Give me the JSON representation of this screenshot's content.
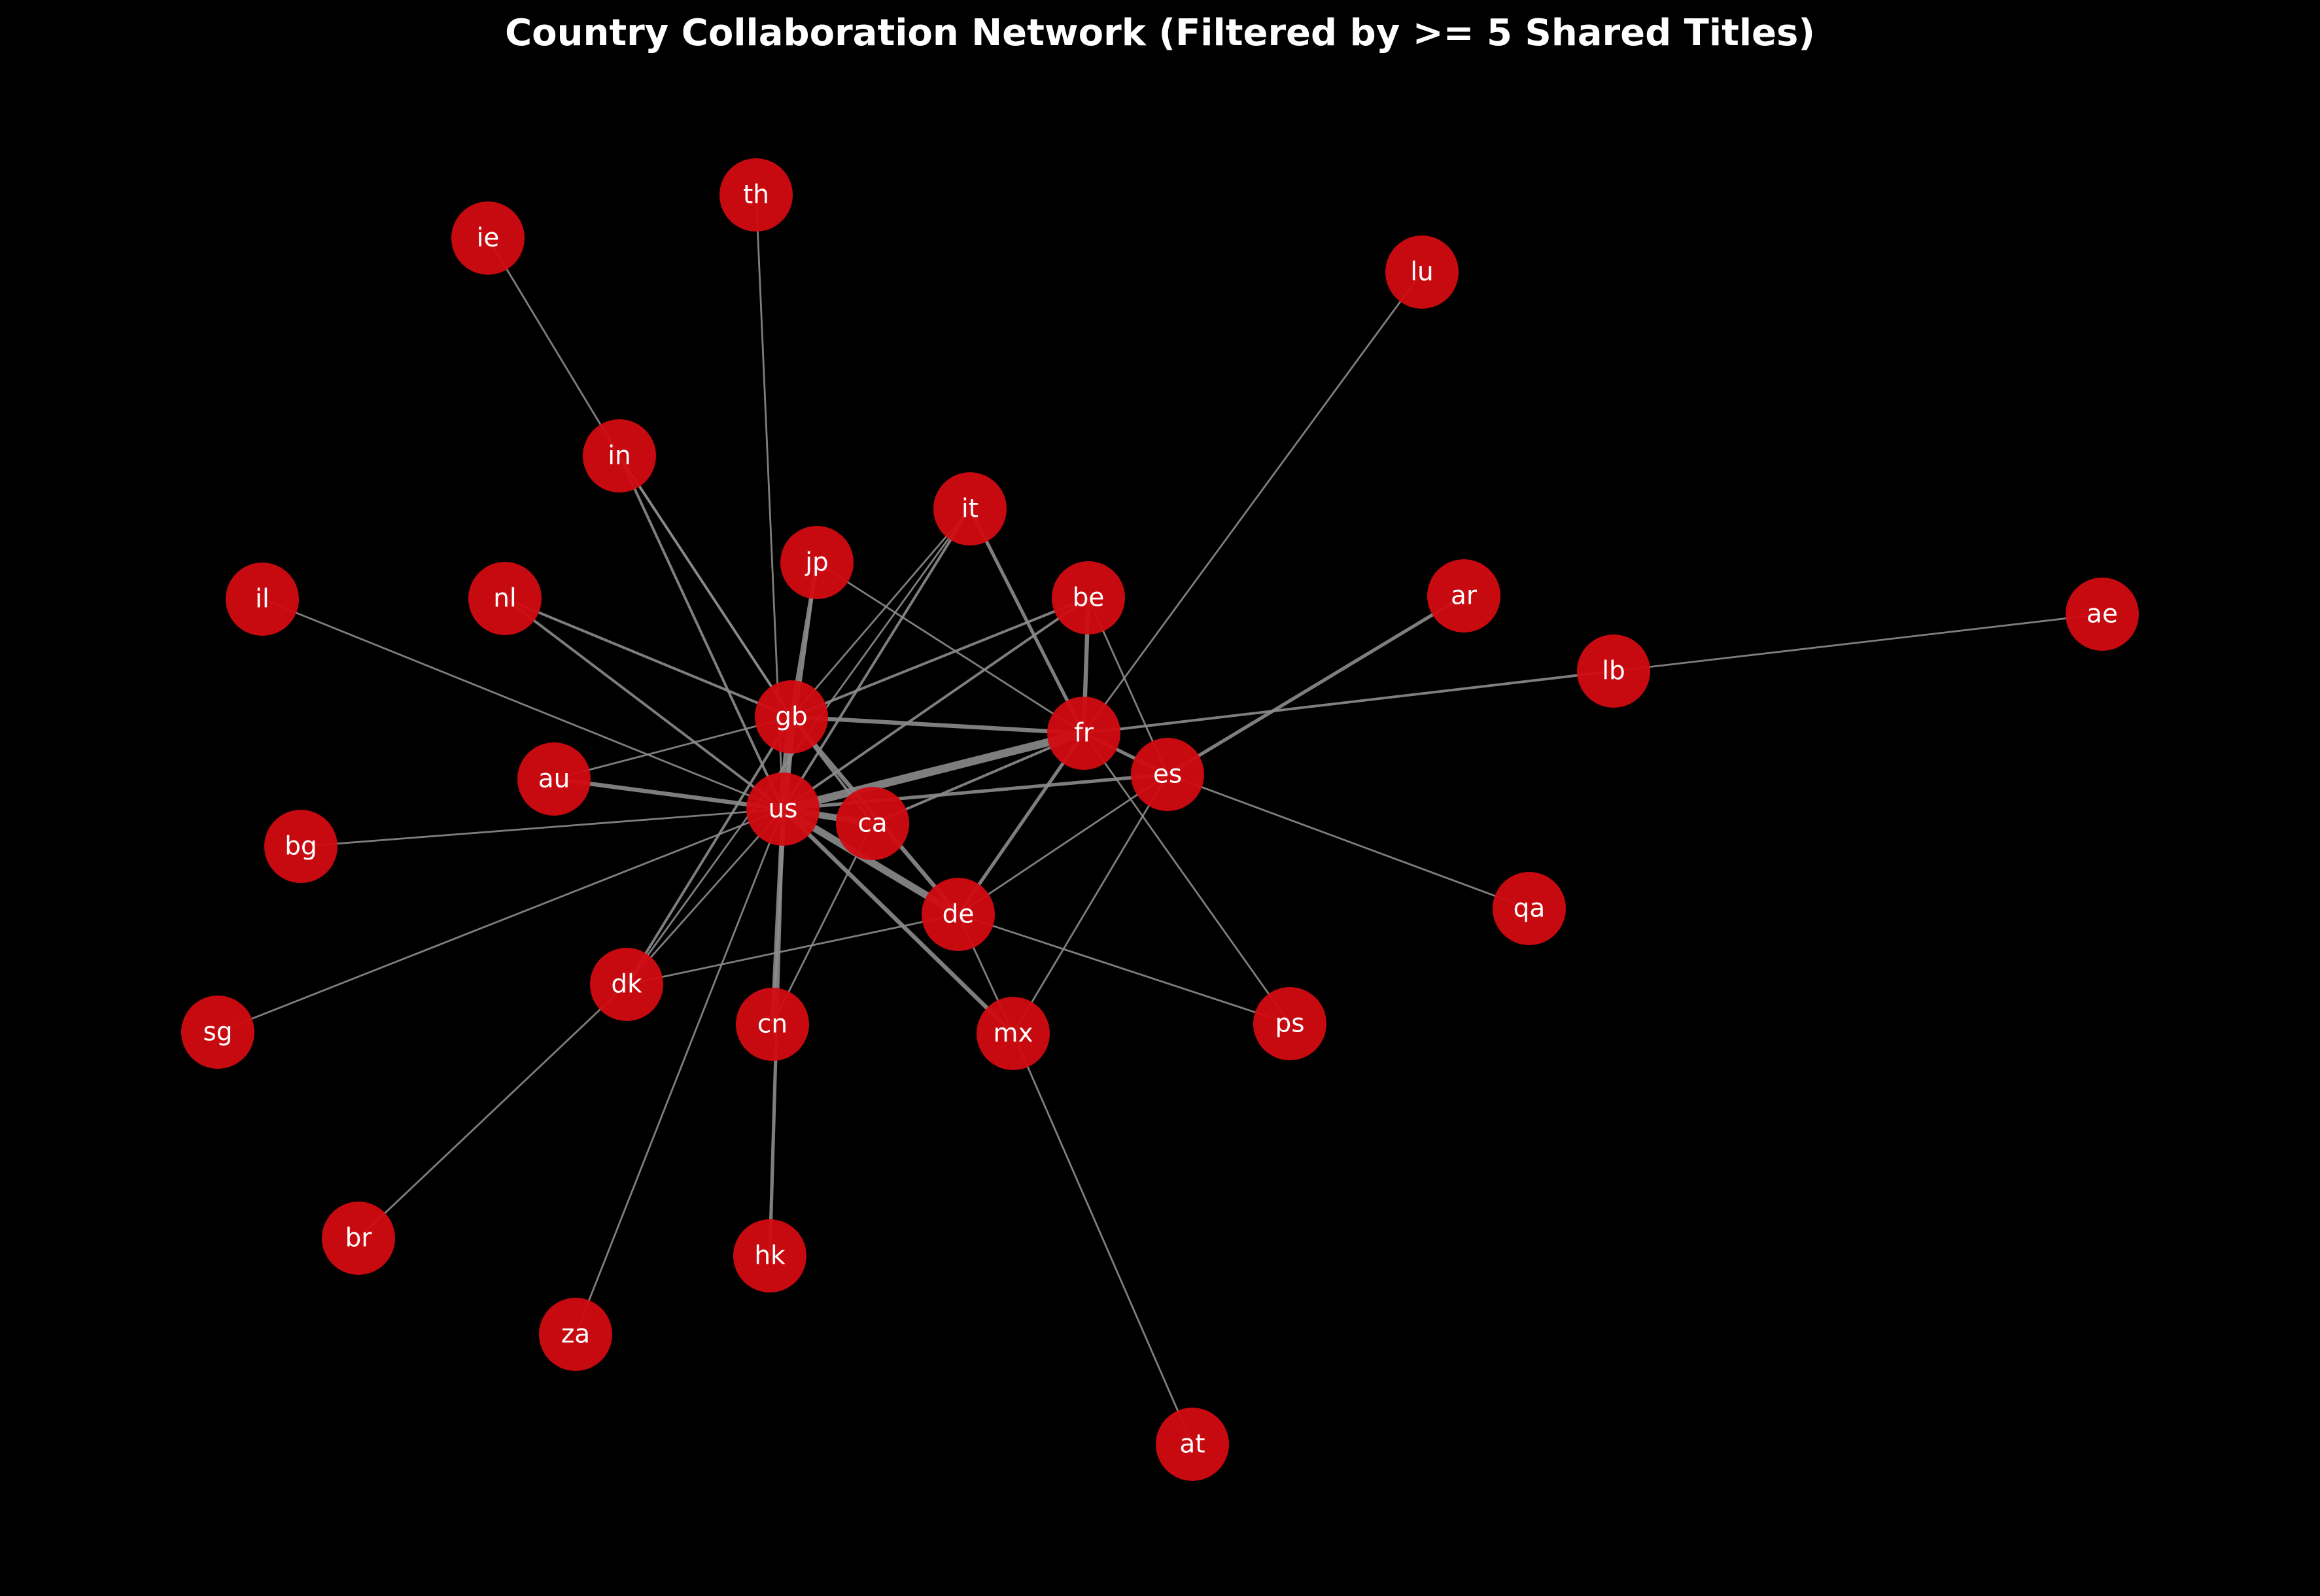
{
  "title": "Country Collaboration Network (Filtered by >= 5 Shared Titles)",
  "colors": {
    "background": "#000000",
    "node": "#d20a11",
    "edge": "#8c8c8c",
    "label": "#ffffff"
  },
  "nodes": [
    {
      "id": "us",
      "label": "us"
    },
    {
      "id": "gb",
      "label": "gb"
    },
    {
      "id": "fr",
      "label": "fr"
    },
    {
      "id": "ca",
      "label": "ca"
    },
    {
      "id": "de",
      "label": "de"
    },
    {
      "id": "es",
      "label": "es"
    },
    {
      "id": "be",
      "label": "be"
    },
    {
      "id": "it",
      "label": "it"
    },
    {
      "id": "jp",
      "label": "jp"
    },
    {
      "id": "in",
      "label": "in"
    },
    {
      "id": "ie",
      "label": "ie"
    },
    {
      "id": "th",
      "label": "th"
    },
    {
      "id": "lu",
      "label": "lu"
    },
    {
      "id": "nl",
      "label": "nl"
    },
    {
      "id": "il",
      "label": "il"
    },
    {
      "id": "ar",
      "label": "ar"
    },
    {
      "id": "ae",
      "label": "ae"
    },
    {
      "id": "lb",
      "label": "lb"
    },
    {
      "id": "au",
      "label": "au"
    },
    {
      "id": "bg",
      "label": "bg"
    },
    {
      "id": "sg",
      "label": "sg"
    },
    {
      "id": "dk",
      "label": "dk"
    },
    {
      "id": "cn",
      "label": "cn"
    },
    {
      "id": "mx",
      "label": "mx"
    },
    {
      "id": "ps",
      "label": "ps"
    },
    {
      "id": "qa",
      "label": "qa"
    },
    {
      "id": "br",
      "label": "br"
    },
    {
      "id": "hk",
      "label": "hk"
    },
    {
      "id": "za",
      "label": "za"
    },
    {
      "id": "at",
      "label": "at"
    }
  ],
  "edges": [
    {
      "source": "us",
      "target": "gb",
      "weight": 10
    },
    {
      "source": "us",
      "target": "fr",
      "weight": 9
    },
    {
      "source": "us",
      "target": "de",
      "weight": 8
    },
    {
      "source": "us",
      "target": "ca",
      "weight": 7
    },
    {
      "source": "us",
      "target": "cn",
      "weight": 4
    },
    {
      "source": "us",
      "target": "hk",
      "weight": 3
    },
    {
      "source": "us",
      "target": "es",
      "weight": 3
    },
    {
      "source": "us",
      "target": "au",
      "weight": 4
    },
    {
      "source": "us",
      "target": "mx",
      "weight": 4
    },
    {
      "source": "us",
      "target": "in",
      "weight": 2
    },
    {
      "source": "us",
      "target": "jp",
      "weight": 2
    },
    {
      "source": "us",
      "target": "it",
      "weight": 2
    },
    {
      "source": "us",
      "target": "be",
      "weight": 2
    },
    {
      "source": "us",
      "target": "nl",
      "weight": 2
    },
    {
      "source": "us",
      "target": "il",
      "weight": 1
    },
    {
      "source": "us",
      "target": "bg",
      "weight": 1
    },
    {
      "source": "us",
      "target": "sg",
      "weight": 1
    },
    {
      "source": "us",
      "target": "dk",
      "weight": 1
    },
    {
      "source": "us",
      "target": "za",
      "weight": 1
    },
    {
      "source": "us",
      "target": "th",
      "weight": 1
    },
    {
      "source": "gb",
      "target": "fr",
      "weight": 4
    },
    {
      "source": "gb",
      "target": "de",
      "weight": 4
    },
    {
      "source": "gb",
      "target": "jp",
      "weight": 4
    },
    {
      "source": "gb",
      "target": "in",
      "weight": 2
    },
    {
      "source": "gb",
      "target": "nl",
      "weight": 2
    },
    {
      "source": "gb",
      "target": "be",
      "weight": 2
    },
    {
      "source": "gb",
      "target": "dk",
      "weight": 2
    },
    {
      "source": "gb",
      "target": "it",
      "weight": 1
    },
    {
      "source": "fr",
      "target": "be",
      "weight": 4
    },
    {
      "source": "fr",
      "target": "de",
      "weight": 3
    },
    {
      "source": "fr",
      "target": "es",
      "weight": 3
    },
    {
      "source": "fr",
      "target": "it",
      "weight": 3
    },
    {
      "source": "fr",
      "target": "ca",
      "weight": 2
    },
    {
      "source": "fr",
      "target": "lb",
      "weight": 2
    },
    {
      "source": "fr",
      "target": "lu",
      "weight": 1
    },
    {
      "source": "fr",
      "target": "ps",
      "weight": 1
    },
    {
      "source": "fr",
      "target": "jp",
      "weight": 1
    },
    {
      "source": "es",
      "target": "ar",
      "weight": 3
    },
    {
      "source": "es",
      "target": "qa",
      "weight": 1
    },
    {
      "source": "es",
      "target": "mx",
      "weight": 1
    },
    {
      "source": "es",
      "target": "de",
      "weight": 1
    },
    {
      "source": "es",
      "target": "be",
      "weight": 1
    },
    {
      "source": "de",
      "target": "dk",
      "weight": 1
    },
    {
      "source": "de",
      "target": "ps",
      "weight": 1
    },
    {
      "source": "de",
      "target": "mx",
      "weight": 1
    },
    {
      "source": "ca",
      "target": "cn",
      "weight": 1
    },
    {
      "source": "ca",
      "target": "gb",
      "weight": 2
    },
    {
      "source": "ie",
      "target": "in",
      "weight": 1
    },
    {
      "source": "in",
      "target": "gb",
      "weight": 1
    },
    {
      "source": "lb",
      "target": "ae",
      "weight": 1
    },
    {
      "source": "gb",
      "target": "au",
      "weight": 1
    },
    {
      "source": "dk",
      "target": "br",
      "weight": 1
    },
    {
      "source": "dk",
      "target": "it",
      "weight": 1
    },
    {
      "source": "mx",
      "target": "at",
      "weight": 1
    },
    {
      "source": "gb",
      "target": "cn",
      "weight": 1
    }
  ]
}
